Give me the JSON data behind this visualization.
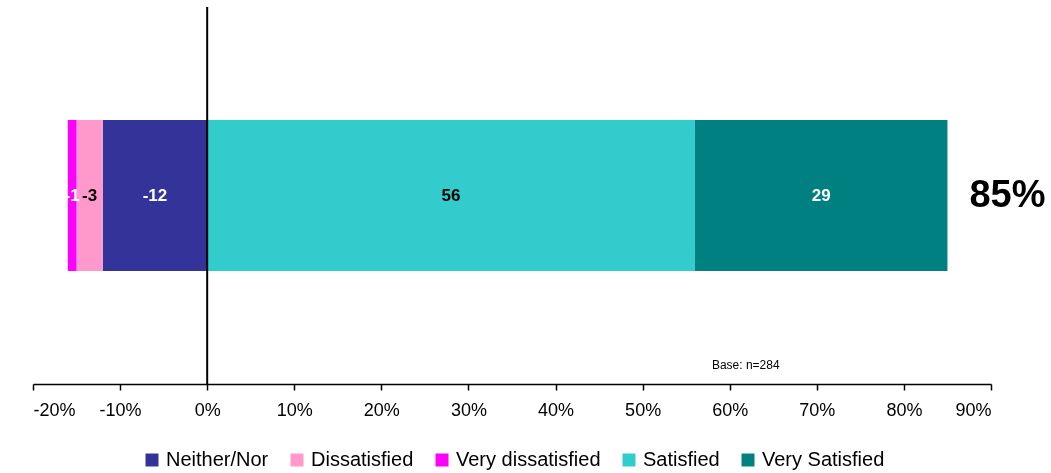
{
  "chart_data": {
    "type": "bar",
    "orientation": "horizontal",
    "stacked": true,
    "categories": [
      null
    ],
    "series": [
      {
        "name": "Neither/Nor",
        "color": "#333399",
        "values": [
          -12
        ]
      },
      {
        "name": "Dissatisfied",
        "color": "#ff99cc",
        "values": [
          -3
        ]
      },
      {
        "name": "Very dissatisfied",
        "color": "#ff00ff",
        "values": [
          -1
        ]
      },
      {
        "name": "Satisfied",
        "color": "#33cccc",
        "values": [
          56
        ]
      },
      {
        "name": "Very Satisfied",
        "color": "#008080",
        "values": [
          29
        ]
      }
    ],
    "xlim": [
      -20,
      90
    ],
    "xticks": [
      {
        "value": -20,
        "label": "-20%"
      },
      {
        "value": -10,
        "label": "-10%"
      },
      {
        "value": 0,
        "label": "0%"
      },
      {
        "value": 10,
        "label": "10%"
      },
      {
        "value": 20,
        "label": "20%"
      },
      {
        "value": 30,
        "label": "30%"
      },
      {
        "value": 40,
        "label": "40%"
      },
      {
        "value": 50,
        "label": "50%"
      },
      {
        "value": 60,
        "label": "60%"
      },
      {
        "value": 70,
        "label": "70%"
      },
      {
        "value": 80,
        "label": "80%"
      },
      {
        "value": 90,
        "label": "90%"
      }
    ],
    "ref_lines": [
      {
        "axis": "x",
        "value": 0,
        "color": "#000000",
        "line_style": "solid"
      }
    ],
    "data_labels": true,
    "annotations": [
      {
        "text": "85%",
        "x": 85
      },
      "Base: n=284"
    ],
    "legend": "bottom",
    "grid": false,
    "tick_labels": "x"
  }
}
